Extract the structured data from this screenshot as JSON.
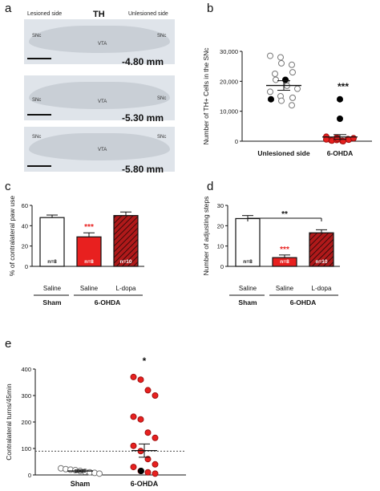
{
  "panels": {
    "a": "a",
    "b": "b",
    "c": "c",
    "d": "d",
    "e": "e"
  },
  "panel_a": {
    "lesioned_side": "Lesioned side",
    "title": "TH",
    "unlesioned_side": "Unlesioned side",
    "sections": [
      {
        "snc_left": "SNc",
        "vta": "VTA",
        "snc_right": "SNc",
        "depth": "-4.80 mm"
      },
      {
        "snc_left": "SNc",
        "vta": "VTA",
        "snc_right": "SNc",
        "depth": "-5.30 mm"
      },
      {
        "snc_left": "SNc",
        "vta": "VTA",
        "snc_right": "SNc",
        "depth": "-5.80 mm"
      }
    ]
  },
  "chart_data": [
    {
      "id": "b",
      "type": "scatter",
      "ylabel": "Number of TH+ Cells in the SNc",
      "categories": [
        "Unlesioned side",
        "6-OHDA"
      ],
      "ylim": [
        0,
        30000
      ],
      "yticks": [
        "0",
        "10,000",
        "20,000",
        "30,000"
      ],
      "ytick_values": [
        0,
        10000,
        20000,
        30000
      ],
      "groups": [
        {
          "mean": 18600,
          "sem": 1600,
          "color": "#ffffff",
          "highlight_color": "#000000",
          "values": [
            28500,
            28000,
            26000,
            25500,
            23000,
            22500,
            20500,
            20000,
            18500,
            17500,
            16500,
            15000,
            13500,
            12000,
            14500
          ],
          "highlight_values": [
            20500,
            14000
          ]
        },
        {
          "mean": 1400,
          "sem": 800,
          "color": "#e8201f",
          "highlight_color": "#000000",
          "values": [
            1500,
            1200,
            900,
            700,
            500,
            300,
            200,
            100,
            0,
            1000,
            600,
            400,
            800
          ],
          "highlight_values": [
            14000,
            7500
          ]
        }
      ],
      "significance": "***"
    },
    {
      "id": "c",
      "type": "bar",
      "ylabel": "% of contralateral paw use",
      "categories": [
        "Saline",
        "Saline",
        "L-dopa"
      ],
      "group_labels": [
        "Sham",
        "6-OHDA"
      ],
      "ylim": [
        0,
        60
      ],
      "yticks": [
        "0",
        "20",
        "40",
        "60"
      ],
      "ytick_values": [
        0,
        20,
        40,
        60
      ],
      "values": [
        48,
        29,
        50
      ],
      "errors": [
        2.5,
        4,
        3.5
      ],
      "n_labels": [
        "n=8",
        "n=8",
        "n=10"
      ],
      "fills": [
        "#ffffff",
        "#e8201f",
        "#b0191a"
      ],
      "hatched": [
        false,
        false,
        true
      ],
      "significance": [
        "",
        "***",
        ""
      ]
    },
    {
      "id": "d",
      "type": "bar",
      "ylabel": "Number of adjusting steps",
      "categories": [
        "Saline",
        "Saline",
        "L-dopa"
      ],
      "group_labels": [
        "Sham",
        "6-OHDA"
      ],
      "ylim": [
        0,
        30
      ],
      "yticks": [
        "0",
        "10",
        "20",
        "30"
      ],
      "ytick_values": [
        0,
        10,
        20,
        30
      ],
      "values": [
        23.5,
        4.3,
        16.5
      ],
      "errors": [
        1.5,
        1.3,
        1.5
      ],
      "n_labels": [
        "n=8",
        "n=8",
        "n=10"
      ],
      "fills": [
        "#ffffff",
        "#e8201f",
        "#b0191a"
      ],
      "hatched": [
        false,
        false,
        true
      ],
      "significance": [
        "",
        "***",
        ""
      ],
      "bracket_label": "**"
    },
    {
      "id": "e",
      "type": "scatter",
      "ylabel": "Contralateral turns/45min",
      "categories": [
        "Sham",
        "6-OHDA"
      ],
      "ylim": [
        0,
        400
      ],
      "yticks": [
        "0",
        "100",
        "200",
        "300",
        "400"
      ],
      "ytick_values": [
        0,
        100,
        200,
        300,
        400
      ],
      "reference_line": 90,
      "significance": "*",
      "groups": [
        {
          "mean": 15,
          "sem": 4,
          "color": "#ffffff",
          "values": [
            25,
            22,
            20,
            18,
            15,
            12,
            10,
            8,
            5
          ]
        },
        {
          "mean": 92,
          "sem": 25,
          "color": "#e8201f",
          "values": [
            370,
            360,
            320,
            300,
            220,
            210,
            160,
            140,
            110,
            90,
            60,
            40,
            30,
            15,
            10,
            5
          ],
          "highlight_values": [
            15
          ],
          "highlight_color": "#000000"
        }
      ]
    }
  ]
}
